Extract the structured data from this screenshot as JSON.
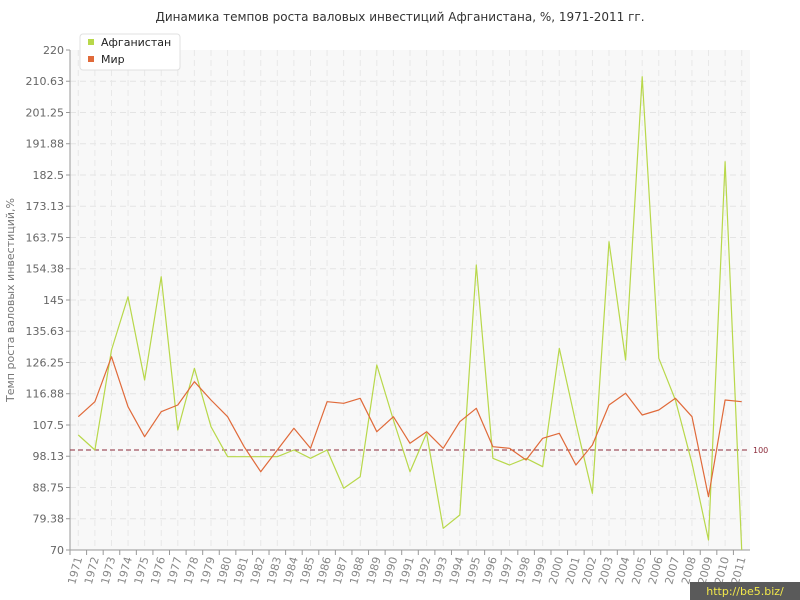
{
  "chart_data": {
    "type": "line",
    "title": "Динамика темпов роста валовых инвестиций Афганистана, %, 1971-2011 гг.",
    "xlabel": "",
    "ylabel": "Темп роста валовых инвестиций,%",
    "x": [
      "1971",
      "1972",
      "1973",
      "1974",
      "1975",
      "1976",
      "1977",
      "1978",
      "1979",
      "1980",
      "1981",
      "1982",
      "1983",
      "1984",
      "1985",
      "1986",
      "1987",
      "1988",
      "1989",
      "1990",
      "1991",
      "1992",
      "1993",
      "1994",
      "1995",
      "1996",
      "1997",
      "1998",
      "1999",
      "2000",
      "2001",
      "2002",
      "2003",
      "2004",
      "2005",
      "2006",
      "2007",
      "2008",
      "2009",
      "2010",
      "2011"
    ],
    "ylim": [
      70,
      220
    ],
    "yticks": [
      "70",
      "79.38",
      "88.75",
      "98.13",
      "107.5",
      "116.88",
      "126.25",
      "135.63",
      "145",
      "154.38",
      "163.75",
      "173.13",
      "182.5",
      "191.88",
      "201.25",
      "210.63",
      "220"
    ],
    "series": [
      {
        "name": "Афганистан",
        "color": "#b8d84a",
        "values": [
          104.5,
          100,
          130,
          146,
          121,
          152,
          106,
          124.5,
          107,
          98,
          98,
          98,
          98,
          100,
          97.5,
          100,
          88.5,
          92,
          125.5,
          109,
          93.5,
          105,
          76.5,
          80.5,
          155.5,
          97.5,
          95.5,
          97.5,
          95,
          130.5,
          108,
          87,
          162.5,
          127,
          212,
          127.5,
          115,
          96,
          73,
          186.5,
          70
        ]
      },
      {
        "name": "Мир",
        "color": "#e06a3a",
        "values": [
          110,
          114.5,
          128,
          113,
          104,
          111.5,
          113.5,
          120.5,
          115,
          110,
          101,
          93.5,
          100,
          106.5,
          100.5,
          114.5,
          114,
          115.5,
          105.5,
          110,
          102,
          105.5,
          100.5,
          108.5,
          112.5,
          101,
          100.5,
          97,
          103.5,
          105,
          95.5,
          101.5,
          113.5,
          117,
          110.5,
          112,
          115.5,
          110,
          86,
          115,
          114.5
        ]
      }
    ],
    "reference_line": {
      "value": 100,
      "label": "100",
      "color": "#8b2a3a"
    },
    "grid": true,
    "legend_position": "top-left"
  },
  "watermark": {
    "text": "http://be5.biz/"
  }
}
